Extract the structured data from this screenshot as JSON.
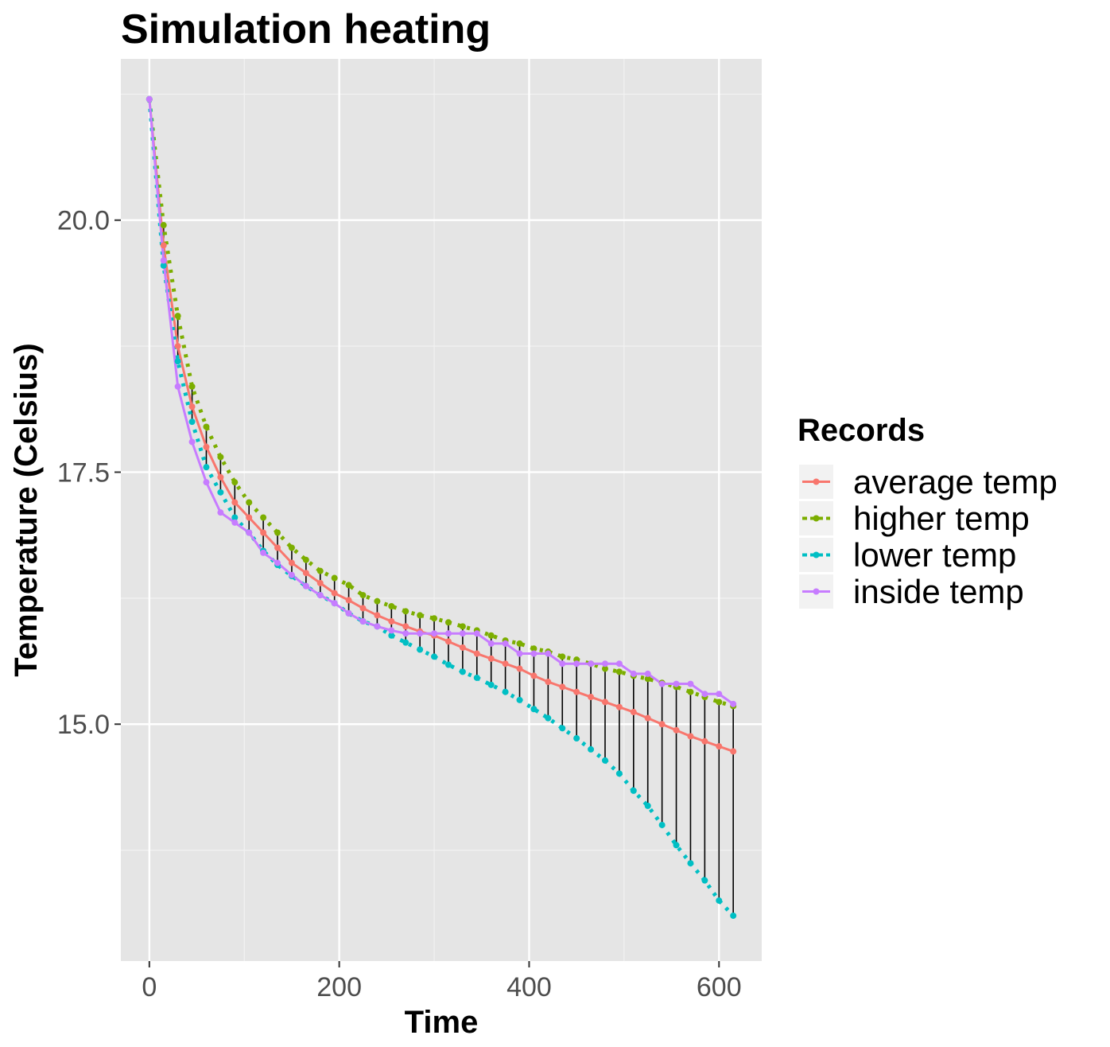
{
  "chart_data": {
    "type": "line",
    "title": "Simulation heating",
    "xlabel": "Time",
    "ylabel": "Temperature (Celsius)",
    "xlim": [
      -30,
      645
    ],
    "ylim": [
      12.65,
      21.6
    ],
    "x_ticks": [
      0,
      200,
      400,
      600
    ],
    "x_tick_labels": [
      "0",
      "200",
      "400",
      "600"
    ],
    "y_ticks": [
      15.0,
      17.5,
      20.0
    ],
    "y_tick_labels": [
      "15.0",
      "17.5",
      "20.0"
    ],
    "grid": true,
    "background": "#e5e5e5",
    "legend": {
      "title": "Records",
      "position": "right"
    },
    "x": [
      0,
      15,
      30,
      45,
      60,
      75,
      90,
      105,
      120,
      135,
      150,
      165,
      180,
      195,
      210,
      225,
      240,
      255,
      270,
      285,
      300,
      315,
      330,
      345,
      360,
      375,
      390,
      405,
      420,
      435,
      450,
      465,
      480,
      495,
      510,
      525,
      540,
      555,
      570,
      585,
      600,
      615
    ],
    "series": [
      {
        "name": "average temp",
        "color": "#F8766D",
        "dash": "solid",
        "values": [
          21.2,
          19.75,
          18.75,
          18.15,
          17.75,
          17.45,
          17.2,
          17.05,
          16.9,
          16.75,
          16.6,
          16.5,
          16.4,
          16.3,
          16.23,
          16.15,
          16.08,
          16.02,
          15.97,
          15.92,
          15.88,
          15.82,
          15.76,
          15.7,
          15.65,
          15.6,
          15.55,
          15.48,
          15.42,
          15.37,
          15.32,
          15.27,
          15.22,
          15.17,
          15.12,
          15.06,
          15.0,
          14.94,
          14.88,
          14.83,
          14.78,
          14.73
        ]
      },
      {
        "name": "higher temp",
        "color": "#7CAE00",
        "dash": "dotted",
        "values": [
          21.2,
          19.95,
          19.05,
          18.35,
          17.95,
          17.65,
          17.4,
          17.2,
          17.05,
          16.9,
          16.75,
          16.63,
          16.52,
          16.45,
          16.38,
          16.28,
          16.22,
          16.17,
          16.12,
          16.08,
          16.05,
          16.01,
          15.97,
          15.93,
          15.88,
          15.83,
          15.8,
          15.75,
          15.72,
          15.67,
          15.64,
          15.6,
          15.55,
          15.52,
          15.48,
          15.45,
          15.41,
          15.37,
          15.32,
          15.27,
          15.22,
          15.18
        ]
      },
      {
        "name": "lower temp",
        "color": "#00BFC4",
        "dash": "dotted",
        "values": [
          21.2,
          19.55,
          18.6,
          18.0,
          17.55,
          17.3,
          17.05,
          16.9,
          16.72,
          16.58,
          16.47,
          16.37,
          16.28,
          16.2,
          16.1,
          16.02,
          15.97,
          15.88,
          15.81,
          15.74,
          15.67,
          15.59,
          15.52,
          15.46,
          15.39,
          15.32,
          15.24,
          15.15,
          15.06,
          14.96,
          14.86,
          14.75,
          14.64,
          14.51,
          14.34,
          14.19,
          14.0,
          13.8,
          13.62,
          13.45,
          13.25,
          13.1
        ]
      },
      {
        "name": "inside temp",
        "color": "#C77CFF",
        "dash": "solid",
        "values": [
          21.2,
          19.6,
          18.35,
          17.8,
          17.4,
          17.1,
          17.0,
          16.9,
          16.7,
          16.6,
          16.48,
          16.37,
          16.28,
          16.2,
          16.1,
          16.02,
          15.97,
          15.93,
          15.9,
          15.9,
          15.9,
          15.9,
          15.9,
          15.9,
          15.8,
          15.8,
          15.7,
          15.7,
          15.7,
          15.6,
          15.6,
          15.6,
          15.6,
          15.6,
          15.5,
          15.5,
          15.4,
          15.4,
          15.4,
          15.3,
          15.3,
          15.2
        ]
      }
    ],
    "annotations": "vertical segments from lower temp to higher temp at each time step"
  }
}
